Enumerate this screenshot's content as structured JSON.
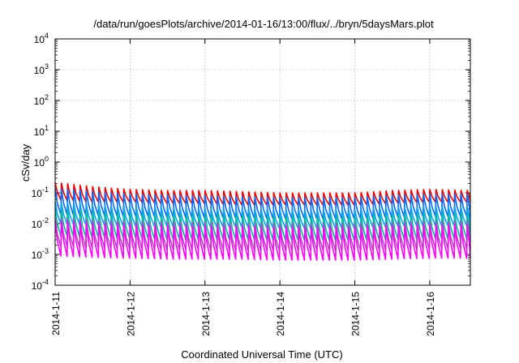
{
  "chart_data": {
    "type": "line",
    "title": "/data/run/goesPlots/archive/2014-01-16/13:00/flux/../bryn/5daysMars.plot",
    "xlabel": "Coordinated Universal Time (UTC)",
    "ylabel": "cSv/day",
    "yscale": "log",
    "ylim": [
      0.0001,
      10000
    ],
    "y_ticks": [
      {
        "base": "10",
        "exp": "-4",
        "value": 0.0001
      },
      {
        "base": "10",
        "exp": "-3",
        "value": 0.001
      },
      {
        "base": "10",
        "exp": "-2",
        "value": 0.01
      },
      {
        "base": "10",
        "exp": "-1",
        "value": 0.1
      },
      {
        "base": "10",
        "exp": "0",
        "value": 1
      },
      {
        "base": "10",
        "exp": "1",
        "value": 10
      },
      {
        "base": "10",
        "exp": "2",
        "value": 100
      },
      {
        "base": "10",
        "exp": "3",
        "value": 1000
      },
      {
        "base": "10",
        "exp": "4",
        "value": 10000
      }
    ],
    "xlim": [
      "2014-01-11 00:00",
      "2014-01-16 13:00"
    ],
    "x_ticks": [
      "2014-1-11",
      "2014-1-12",
      "2014-1-13",
      "2014-1-14",
      "2014-1-15",
      "2014-1-16"
    ],
    "grid": true,
    "sawtooth_period_hours": 2,
    "series": [
      {
        "color": "#ee0000",
        "x": [
          "2014-01-11 00:00",
          "2014-01-11 12:00",
          "2014-01-12 00:00",
          "2014-01-12 12:00",
          "2014-01-13 00:00",
          "2014-01-13 12:00",
          "2014-01-14 00:00",
          "2014-01-14 12:00",
          "2014-01-15 00:00",
          "2014-01-15 12:00",
          "2014-01-16 00:00",
          "2014-01-16 13:00"
        ],
        "peak": [
          0.22,
          0.16,
          0.13,
          0.12,
          0.12,
          0.11,
          0.1,
          0.1,
          0.1,
          0.12,
          0.13,
          0.12
        ],
        "trough": [
          0.06,
          0.05,
          0.05,
          0.045,
          0.045,
          0.04,
          0.04,
          0.04,
          0.04,
          0.045,
          0.05,
          0.05
        ]
      },
      {
        "color": "#0066ff",
        "x": [
          "2014-01-11 00:00",
          "2014-01-11 12:00",
          "2014-01-12 00:00",
          "2014-01-12 12:00",
          "2014-01-13 00:00",
          "2014-01-13 12:00",
          "2014-01-14 00:00",
          "2014-01-14 12:00",
          "2014-01-15 00:00",
          "2014-01-15 12:00",
          "2014-01-16 00:00",
          "2014-01-16 13:00"
        ],
        "peak": [
          0.14,
          0.11,
          0.09,
          0.085,
          0.08,
          0.075,
          0.07,
          0.07,
          0.07,
          0.085,
          0.09,
          0.09
        ],
        "trough": [
          0.02,
          0.018,
          0.017,
          0.016,
          0.015,
          0.015,
          0.014,
          0.014,
          0.014,
          0.016,
          0.017,
          0.017
        ]
      },
      {
        "color": "#00a0ff",
        "x": [
          "2014-01-11 00:00",
          "2014-01-11 12:00",
          "2014-01-12 00:00",
          "2014-01-12 12:00",
          "2014-01-13 00:00",
          "2014-01-13 12:00",
          "2014-01-14 00:00",
          "2014-01-14 12:00",
          "2014-01-15 00:00",
          "2014-01-15 12:00",
          "2014-01-16 00:00",
          "2014-01-16 13:00"
        ],
        "peak": [
          0.05,
          0.04,
          0.035,
          0.033,
          0.03,
          0.03,
          0.028,
          0.028,
          0.028,
          0.033,
          0.035,
          0.035
        ],
        "trough": [
          0.01,
          0.009,
          0.008,
          0.008,
          0.0075,
          0.0075,
          0.007,
          0.007,
          0.007,
          0.008,
          0.0085,
          0.0085
        ]
      },
      {
        "color": "#00b8a0",
        "x": [
          "2014-01-11 00:00",
          "2014-01-11 12:00",
          "2014-01-12 00:00",
          "2014-01-12 12:00",
          "2014-01-13 00:00",
          "2014-01-13 12:00",
          "2014-01-14 00:00",
          "2014-01-14 12:00",
          "2014-01-15 00:00",
          "2014-01-15 12:00",
          "2014-01-16 00:00",
          "2014-01-16 13:00"
        ],
        "peak": [
          0.03,
          0.025,
          0.022,
          0.02,
          0.02,
          0.019,
          0.018,
          0.018,
          0.018,
          0.02,
          0.022,
          0.022
        ],
        "trough": [
          0.004,
          0.0035,
          0.0033,
          0.003,
          0.003,
          0.003,
          0.0028,
          0.0028,
          0.0028,
          0.003,
          0.0032,
          0.0032
        ]
      },
      {
        "color": "#b050c0",
        "x": [
          "2014-01-11 00:00",
          "2014-01-11 12:00",
          "2014-01-12 00:00",
          "2014-01-12 12:00",
          "2014-01-13 00:00",
          "2014-01-13 12:00",
          "2014-01-14 00:00",
          "2014-01-14 12:00",
          "2014-01-15 00:00",
          "2014-01-15 12:00",
          "2014-01-16 00:00",
          "2014-01-16 13:00"
        ],
        "peak": [
          0.015,
          0.013,
          0.012,
          0.011,
          0.011,
          0.01,
          0.01,
          0.01,
          0.01,
          0.011,
          0.012,
          0.012
        ],
        "trough": [
          0.0018,
          0.0016,
          0.0015,
          0.0014,
          0.0014,
          0.0013,
          0.0013,
          0.0013,
          0.0013,
          0.0014,
          0.0015,
          0.0015
        ]
      },
      {
        "color": "#ff00ff",
        "x": [
          "2014-01-11 00:00",
          "2014-01-11 12:00",
          "2014-01-12 00:00",
          "2014-01-12 12:00",
          "2014-01-13 00:00",
          "2014-01-13 12:00",
          "2014-01-14 00:00",
          "2014-01-14 12:00",
          "2014-01-15 00:00",
          "2014-01-15 12:00",
          "2014-01-16 00:00",
          "2014-01-16 13:00"
        ],
        "peak": [
          0.012,
          0.01,
          0.009,
          0.0085,
          0.008,
          0.008,
          0.0075,
          0.0075,
          0.0075,
          0.0085,
          0.009,
          0.009
        ],
        "trough": [
          0.0009,
          0.0008,
          0.00075,
          0.0007,
          0.0007,
          0.0007,
          0.00065,
          0.00065,
          0.00065,
          0.0007,
          0.00075,
          0.00075
        ]
      }
    ]
  }
}
